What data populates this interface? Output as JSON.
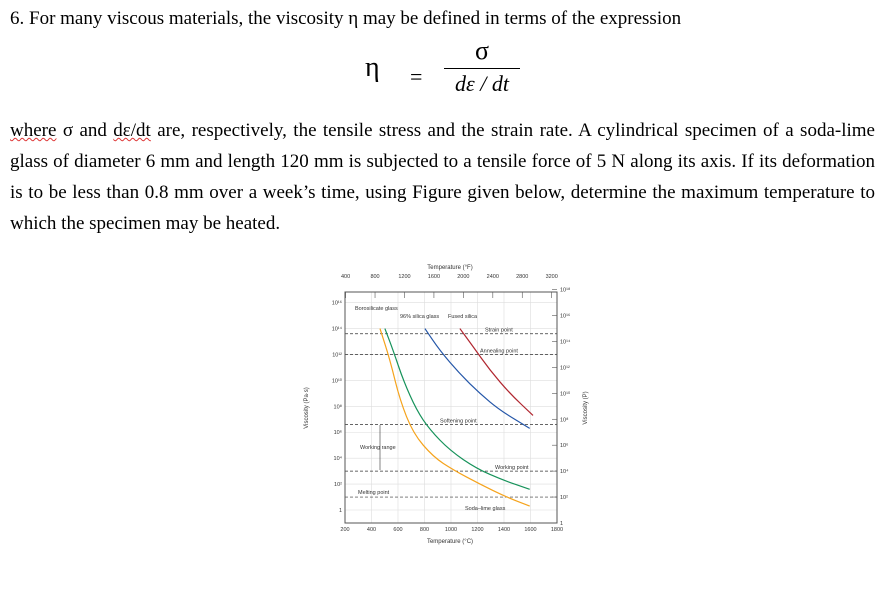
{
  "question": {
    "heading": "6. For many viscous materials, the viscosity η may be defined in terms of the expression",
    "eq_lhs": "η",
    "eq_sign": "=",
    "eq_num": "σ",
    "eq_den": "dε / dt",
    "p_where": "where",
    "p_1": " σ and ",
    "p_dedt": "dε/dt",
    "p_2": " are, respectively, the tensile stress and the strain rate. A cylindrical specimen of a soda-lime glass of diameter 6 mm and length 120 mm is subjected to a tensile force of 5 N along its axis. If its deformation is to be less than 0.8 mm over a week’s time, using Figure given below, determine the maximum temperature to which the specimen may be heated."
  },
  "chart_data": {
    "type": "line",
    "xlabel": "Temperature (°C)",
    "x2label": "Temperature (°F)",
    "ylabel": "Viscosity (Pa·s)",
    "y2label": "Viscosity (P)",
    "y_scale": "log",
    "xlim": [
      200,
      1800
    ],
    "ylim_log10": [
      0,
      16
    ],
    "x_ticks": [
      "200",
      "400",
      "600",
      "800",
      "1000",
      "1200",
      "1400",
      "1600",
      "1800"
    ],
    "x2_ticks": [
      "400",
      "800",
      "1200",
      "1600",
      "2000",
      "2400",
      "2800",
      "3200"
    ],
    "y_ticks": [
      "1",
      "10²",
      "10⁴",
      "10⁶",
      "10⁸",
      "10¹⁰",
      "10¹²",
      "10¹⁴",
      "10¹⁶"
    ],
    "y2_ticks": [
      "1",
      "10²",
      "10⁴",
      "10⁶",
      "10⁸",
      "10¹⁰",
      "10¹²",
      "10¹⁴",
      "10¹⁶",
      "10¹⁸"
    ],
    "grid": true,
    "series": [
      {
        "name": "Soda–lime glass",
        "color": "#f5a31c",
        "x": [
          464,
          539,
          614,
          715,
          866,
          1016,
          1217,
          1418,
          1594
        ],
        "log10_y": [
          14.0,
          11.6,
          8.5,
          5.9,
          4.1,
          3.1,
          2.0,
          1.0,
          0.3
        ]
      },
      {
        "name": "Borosilicate glass",
        "color": "#16925a",
        "x": [
          501,
          564,
          640,
          740,
          840,
          991,
          1192,
          1393,
          1594
        ],
        "log10_y": [
          14.0,
          12.3,
          10.0,
          7.7,
          6.2,
          4.6,
          3.2,
          2.3,
          1.6
        ]
      },
      {
        "name": "96% silica glass",
        "color": "#2456a8",
        "x": [
          803,
          916,
          1067,
          1217,
          1368,
          1594
        ],
        "log10_y": [
          14.0,
          12.3,
          10.5,
          9.0,
          7.7,
          6.3
        ]
      },
      {
        "name": "Fused silica",
        "color": "#b0262f",
        "x": [
          1067,
          1167,
          1293,
          1443,
          1619
        ],
        "log10_y": [
          14.0,
          12.6,
          10.8,
          9.0,
          7.3
        ]
      }
    ],
    "reference_lines": [
      {
        "label": "Strain point",
        "log10_y": 13.6
      },
      {
        "label": "Annealing point",
        "log10_y": 12.0
      },
      {
        "label": "Softening point",
        "log10_y": 6.6
      },
      {
        "label": "Working point",
        "log10_y": 3.0
      },
      {
        "label": "Melting point",
        "log10_y": 1.0
      }
    ],
    "annotations": {
      "working_range": "Working range",
      "borosilicate": "Borosilicate glass",
      "silica96": "96% silica glass",
      "fused": "Fused silica",
      "sodalime": "Soda–lime glass"
    }
  }
}
